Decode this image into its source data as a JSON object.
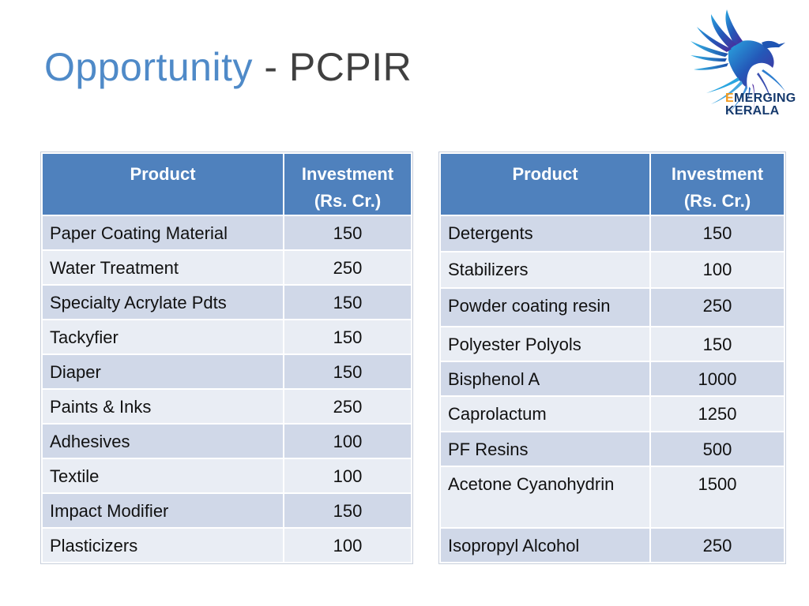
{
  "slide": {
    "title_part1": "Opportunity",
    "title_part2": " - PCPIR"
  },
  "logo": {
    "line1_first": "E",
    "line1_rest": "MERGING",
    "line2": "KERALA",
    "colors": {
      "blue": "#163a6d",
      "orange": "#f29a1f"
    }
  },
  "table_left": {
    "headers": [
      "Product",
      "Investment (Rs. Cr.)"
    ],
    "rows": [
      [
        "Paper Coating Material",
        "150"
      ],
      [
        "Water Treatment",
        "250"
      ],
      [
        "Specialty Acrylate Pdts",
        "150"
      ],
      [
        "Tackyfier",
        "150"
      ],
      [
        "Diaper",
        "150"
      ],
      [
        "Paints & Inks",
        "250"
      ],
      [
        "Adhesives",
        "100"
      ],
      [
        "Textile",
        "100"
      ],
      [
        "Impact Modifier",
        "150"
      ],
      [
        "Plasticizers",
        "100"
      ]
    ]
  },
  "table_right": {
    "headers": [
      "Product",
      "Investment (Rs. Cr.)"
    ],
    "rows": [
      [
        "Detergents",
        "150"
      ],
      [
        "Stabilizers",
        "100"
      ],
      [
        "Powder coating resin",
        "250"
      ],
      [
        "Polyester Polyols",
        "150"
      ],
      [
        "Bisphenol A",
        "1000"
      ],
      [
        "Caprolactum",
        "1250"
      ],
      [
        "PF Resins",
        "500"
      ],
      [
        "Acetone Cyanohydrin",
        "1500"
      ],
      [
        "Isopropyl Alcohol",
        "250"
      ]
    ]
  },
  "colors": {
    "title_accent": "#4f8ac8",
    "header_bg": "#4f81bd",
    "row_dark": "#d0d8e8",
    "row_light": "#e9edf4"
  }
}
